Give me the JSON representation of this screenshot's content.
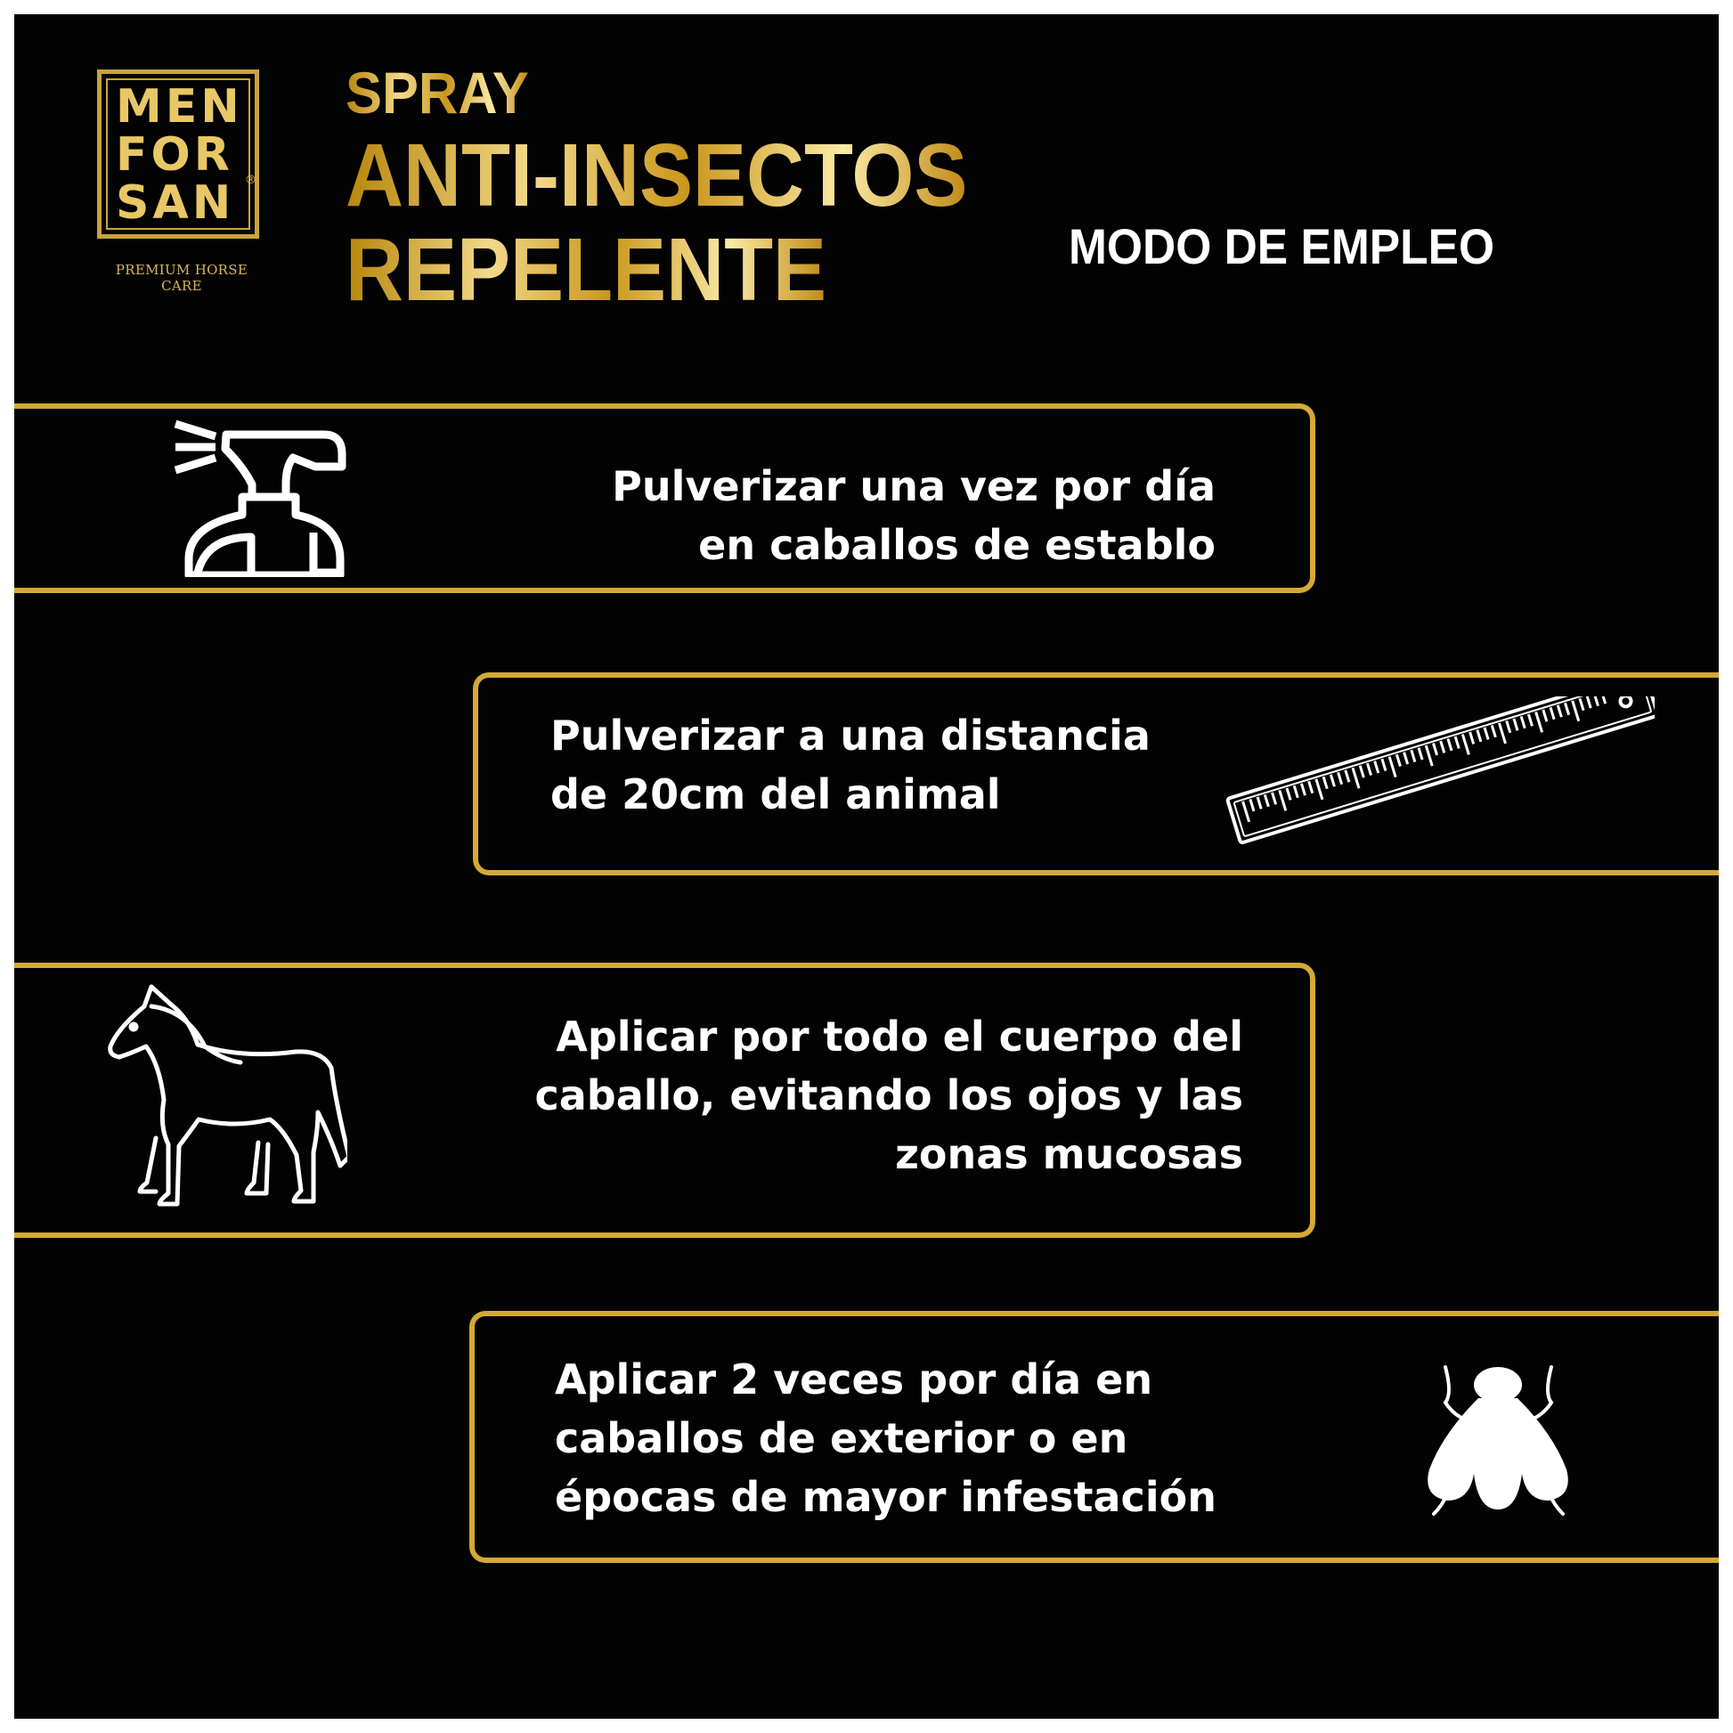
{
  "brand": {
    "logo_lines": [
      "MEN",
      "FOR",
      "SAN"
    ],
    "registered": "®",
    "tagline": "PREMIUM HORSE CARE"
  },
  "header": {
    "line1": "SPRAY",
    "line2": "ANTI-INSECTOS",
    "line3": "REPELENTE",
    "section": "MODO DE EMPLEO"
  },
  "steps": [
    {
      "icon": "spray-bottle-icon",
      "lines": [
        "Pulverizar una vez por día",
        "en caballos de establo"
      ]
    },
    {
      "icon": "ruler-icon",
      "lines": [
        "Pulverizar a una distancia",
        "de 20cm del animal"
      ]
    },
    {
      "icon": "horse-icon",
      "lines": [
        "Aplicar por todo el cuerpo del",
        "caballo, evitando los ojos y las",
        "zonas mucosas"
      ]
    },
    {
      "icon": "fly-icon",
      "lines": [
        "Aplicar 2 veces por día en",
        "caballos de exterior o en",
        "épocas de mayor infestación"
      ]
    }
  ],
  "colors": {
    "background": "#030303",
    "gold": "#d4a935",
    "text": "#ffffff"
  }
}
